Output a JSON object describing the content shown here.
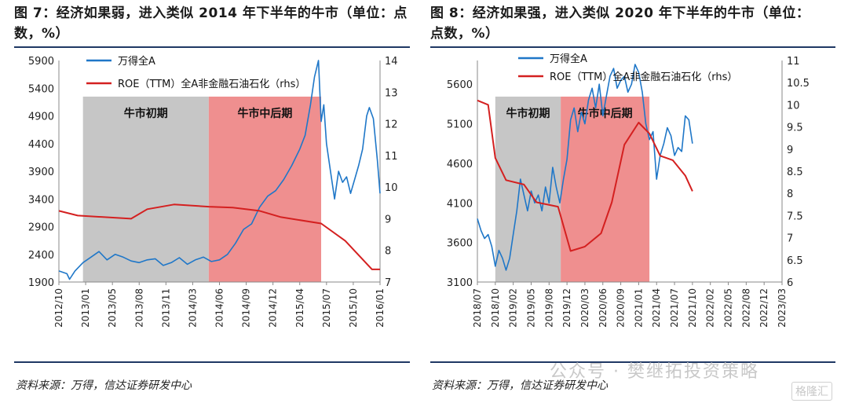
{
  "left": {
    "title_line1": "图 7：经济如果弱，进入类似 2014 年下半年的牛市（单位：点",
    "title_line2": "数，%）",
    "source": "资料来源：万得，信达证券研发中心"
  },
  "right": {
    "title_line1": "图 8：经济如果强，进入类似 2020 年下半年的牛市（单位：",
    "title_line2": "点数，%）",
    "source": "资料来源：万得，信达证券研发中心"
  },
  "watermark": "公众号 · 樊继拓投资策略",
  "logo_text": "格隆汇",
  "chart_data": [
    {
      "type": "line",
      "legend": [
        "万得全A",
        "ROE（TTM）全A非金融石油石化（rhs）"
      ],
      "colors": {
        "index": "#1f77c8",
        "roe": "#d42020",
        "early": "#c6c6c6",
        "late": "#ef8f8f"
      },
      "ylim_left": [
        1900,
        5900
      ],
      "yticks_left": [
        1900,
        2400,
        2900,
        3400,
        3900,
        4400,
        4900,
        5400,
        5900
      ],
      "ylim_right": [
        7,
        14
      ],
      "yticks_right": [
        7,
        8,
        9,
        10,
        11,
        12,
        13,
        14
      ],
      "xticks": [
        "2012/10",
        "2013/01",
        "2013/05",
        "2013/08",
        "2013/11",
        "2014/03",
        "2014/06",
        "2014/09",
        "2014/12",
        "2015/04",
        "2015/07",
        "2015/10",
        "2016/01"
      ],
      "bands": [
        {
          "label": "牛市初期",
          "from": 0.9,
          "to": 5.6,
          "kind": "early"
        },
        {
          "label": "牛市中后期",
          "from": 5.6,
          "to": 9.8,
          "kind": "late"
        }
      ],
      "roe": {
        "x": [
          0,
          0.7,
          2.7,
          3.3,
          4.3,
          5.6,
          6.5,
          7.5,
          8.3,
          9.8,
          10.7,
          11.7,
          12.0
        ],
        "y": [
          9.25,
          9.1,
          9.0,
          9.3,
          9.45,
          9.38,
          9.35,
          9.25,
          9.05,
          8.85,
          8.3,
          7.4,
          7.4
        ]
      },
      "index": {
        "x": [
          0,
          0.3,
          0.4,
          0.6,
          0.9,
          1.2,
          1.5,
          1.8,
          2.1,
          2.4,
          2.7,
          3.0,
          3.3,
          3.6,
          3.9,
          4.2,
          4.5,
          4.8,
          5.1,
          5.4,
          5.7,
          6.0,
          6.3,
          6.6,
          6.9,
          7.2,
          7.5,
          7.8,
          8.1,
          8.4,
          8.7,
          9.0,
          9.2,
          9.4,
          9.55,
          9.7,
          9.8,
          9.9,
          10.0,
          10.15,
          10.3,
          10.45,
          10.6,
          10.75,
          10.9,
          11.05,
          11.2,
          11.35,
          11.5,
          11.6,
          11.75,
          11.9,
          12.0
        ],
        "y": [
          2100,
          2050,
          1950,
          2100,
          2250,
          2350,
          2450,
          2300,
          2400,
          2350,
          2280,
          2250,
          2300,
          2320,
          2200,
          2250,
          2340,
          2220,
          2300,
          2350,
          2270,
          2300,
          2400,
          2600,
          2850,
          2950,
          3250,
          3450,
          3550,
          3750,
          4000,
          4300,
          4550,
          5100,
          5600,
          5900,
          4800,
          5100,
          4400,
          3900,
          3400,
          3900,
          3700,
          3800,
          3500,
          3750,
          4000,
          4300,
          4900,
          5050,
          4850,
          4100,
          3500
        ]
      }
    },
    {
      "type": "line",
      "legend": [
        "万得全A",
        "ROE（TTM）全A非金融石油石化（rhs）"
      ],
      "colors": {
        "index": "#1f77c8",
        "roe": "#d42020",
        "early": "#c6c6c6",
        "late": "#ef8f8f"
      },
      "ylim_left": [
        3100,
        5900
      ],
      "yticks_left": [
        3100,
        3600,
        4100,
        4600,
        5100,
        5600
      ],
      "ylim_right": [
        6,
        11
      ],
      "yticks_right": [
        6,
        6.5,
        7,
        7.5,
        8,
        8.5,
        9,
        9.5,
        10,
        10.5,
        11
      ],
      "xticks": [
        "2018/07",
        "2018/10",
        "2019/02",
        "2019/05",
        "2019/08",
        "2019/12",
        "2020/03",
        "2020/06",
        "2020/09",
        "2021/01",
        "2021/04",
        "2021/07",
        "2021/10",
        "2022/02",
        "2022/05",
        "2022/08",
        "2022/12",
        "2023/03"
      ],
      "bands": [
        {
          "label": "牛市初期",
          "from": 1.0,
          "to": 4.65,
          "kind": "early"
        },
        {
          "label": "牛市中后期",
          "from": 4.65,
          "to": 9.6,
          "kind": "late"
        }
      ],
      "roe": {
        "x": [
          0,
          0.6,
          1.0,
          1.6,
          2.6,
          3.3,
          4.5,
          5.2,
          6.0,
          6.9,
          7.5,
          8.2,
          9.0,
          9.6,
          10.2,
          10.9,
          11.6,
          12.0
        ],
        "y": [
          10.1,
          10.0,
          8.8,
          8.3,
          8.2,
          7.8,
          7.7,
          6.7,
          6.8,
          7.1,
          7.8,
          9.1,
          9.6,
          9.35,
          8.85,
          8.75,
          8.4,
          8.05
        ]
      },
      "index": {
        "x": [
          0,
          0.2,
          0.4,
          0.6,
          0.8,
          1.0,
          1.2,
          1.4,
          1.6,
          1.8,
          2.0,
          2.2,
          2.4,
          2.6,
          2.8,
          3.0,
          3.2,
          3.4,
          3.6,
          3.8,
          4.0,
          4.2,
          4.4,
          4.6,
          4.8,
          5.0,
          5.2,
          5.4,
          5.6,
          5.8,
          6.0,
          6.2,
          6.4,
          6.6,
          6.8,
          7.0,
          7.2,
          7.4,
          7.6,
          7.8,
          8.0,
          8.2,
          8.4,
          8.6,
          8.8,
          9.0,
          9.2,
          9.4,
          9.6,
          9.8,
          10.0,
          10.2,
          10.4,
          10.6,
          10.8,
          11.0,
          11.2,
          11.4,
          11.6,
          11.8,
          12.0
        ],
        "y": [
          3900,
          3750,
          3650,
          3700,
          3550,
          3300,
          3500,
          3400,
          3250,
          3400,
          3700,
          4000,
          4400,
          4200,
          4000,
          4250,
          4100,
          4200,
          4000,
          4300,
          4100,
          4550,
          4300,
          4100,
          4400,
          4650,
          5150,
          5300,
          5000,
          5250,
          5100,
          5400,
          5550,
          5300,
          5600,
          5200,
          5450,
          5700,
          5800,
          5550,
          5650,
          5700,
          5500,
          5600,
          5850,
          5750,
          5500,
          5100,
          4900,
          5000,
          4400,
          4700,
          4850,
          5050,
          4950,
          4700,
          4800,
          4750,
          5200,
          5150,
          4850
        ]
      }
    }
  ]
}
